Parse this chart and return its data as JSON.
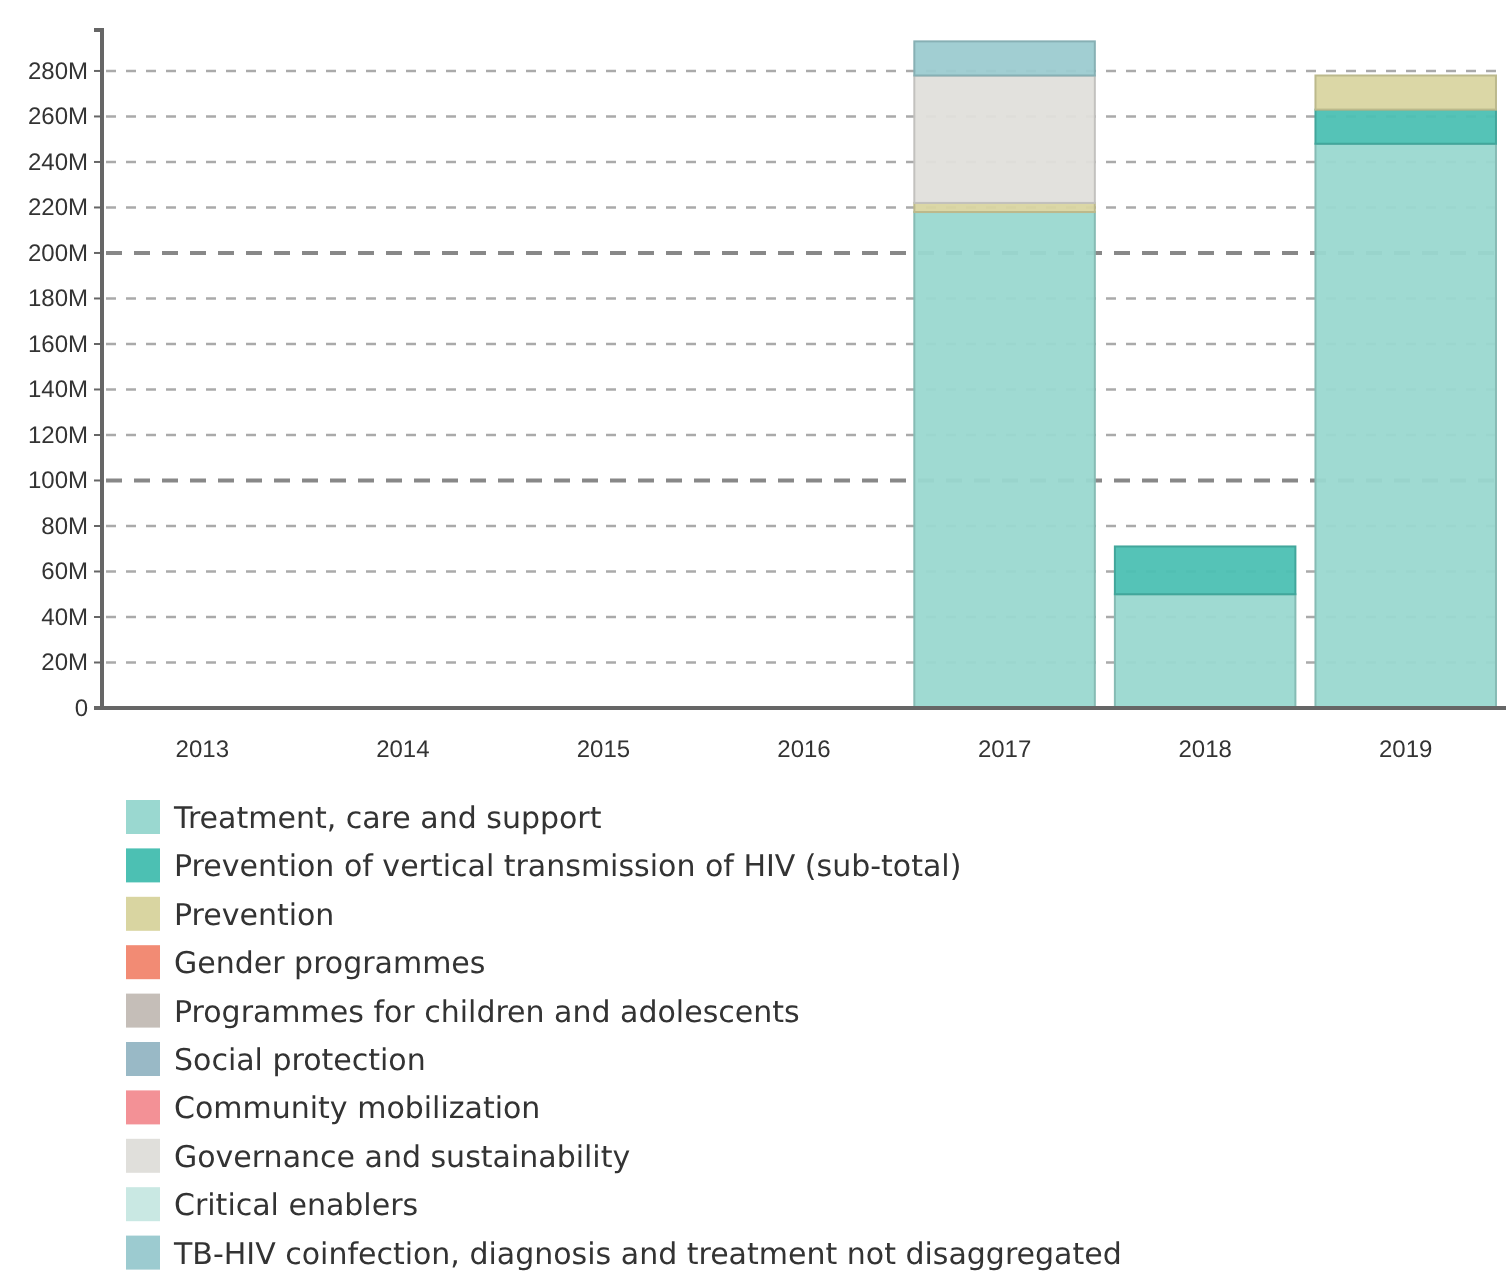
{
  "chart_data": {
    "type": "bar",
    "stacked": true,
    "categories": [
      "2013",
      "2014",
      "2015",
      "2016",
      "2017",
      "2018",
      "2019"
    ],
    "ylim": [
      0,
      298
    ],
    "yticks": [
      {
        "value": 0,
        "label": "0"
      },
      {
        "value": 20,
        "label": "20M"
      },
      {
        "value": 40,
        "label": "40M"
      },
      {
        "value": 60,
        "label": "60M"
      },
      {
        "value": 80,
        "label": "80M"
      },
      {
        "value": 100,
        "label": "100M"
      },
      {
        "value": 120,
        "label": "120M"
      },
      {
        "value": 140,
        "label": "140M"
      },
      {
        "value": 160,
        "label": "160M"
      },
      {
        "value": 180,
        "label": "180M"
      },
      {
        "value": 200,
        "label": "200M"
      },
      {
        "value": 220,
        "label": "220M"
      },
      {
        "value": 240,
        "label": "240M"
      },
      {
        "value": 260,
        "label": "260M"
      },
      {
        "value": 280,
        "label": "280M"
      }
    ],
    "grid": "y",
    "legend": "bottom",
    "series": [
      {
        "name": "Treatment, care and support",
        "color": "#9ad8d0",
        "values": [
          0,
          0,
          0,
          0,
          218,
          50,
          248
        ]
      },
      {
        "name": "Prevention of vertical transmission of HIV (sub-total)",
        "color": "#4cc0b3",
        "values": [
          0,
          0,
          0,
          0,
          0,
          21,
          15
        ]
      },
      {
        "name": "Prevention",
        "color": "#d9d5a1",
        "values": [
          0,
          0,
          0,
          0,
          4,
          0,
          15
        ]
      },
      {
        "name": "Gender programmes",
        "color": "#f28b74",
        "values": [
          0,
          0,
          0,
          0,
          0,
          0,
          0
        ]
      },
      {
        "name": "Programmes for children and adolescents",
        "color": "#c5beb8",
        "values": [
          0,
          0,
          0,
          0,
          0,
          0,
          0
        ]
      },
      {
        "name": "Social protection",
        "color": "#99b9c6",
        "values": [
          0,
          0,
          0,
          0,
          0,
          0,
          0
        ]
      },
      {
        "name": "Community mobilization",
        "color": "#f39196",
        "values": [
          0,
          0,
          0,
          0,
          0,
          0,
          0
        ]
      },
      {
        "name": "Governance and sustainability",
        "color": "#e0dfdb",
        "values": [
          0,
          0,
          0,
          0,
          56,
          0,
          0
        ]
      },
      {
        "name": "Critical enablers",
        "color": "#c9e8e3",
        "values": [
          0,
          0,
          0,
          0,
          0,
          0,
          0
        ]
      },
      {
        "name": "TB-HIV coinfection, diagnosis and treatment not disaggregated",
        "color": "#9ccbd0",
        "values": [
          0,
          0,
          0,
          0,
          15,
          0,
          0
        ]
      }
    ]
  }
}
